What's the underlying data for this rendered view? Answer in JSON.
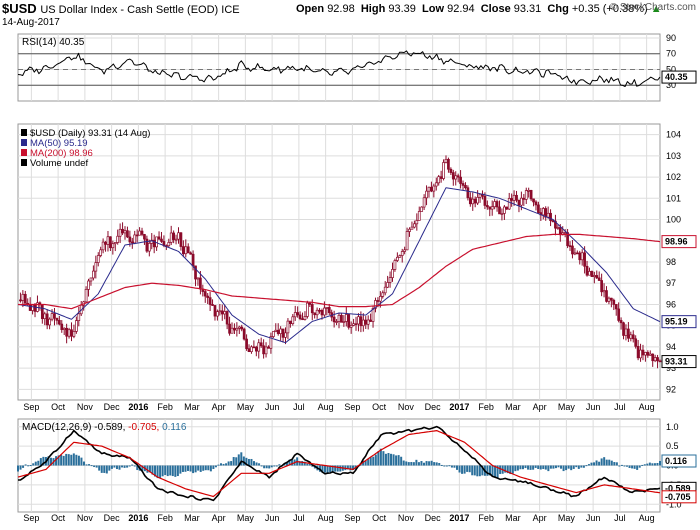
{
  "header": {
    "symbol": "$USD",
    "description": "US Dollar Index - Cash Settle (EOD) ICE",
    "open_label": "Open",
    "open": "92.98",
    "high_label": "High",
    "high": "93.39",
    "low_label": "Low",
    "low": "92.94",
    "close_label": "Close",
    "close": "93.31",
    "chg_label": "Chg",
    "chg": "+0.35 (+0.38%)",
    "chg_arrow": "▲",
    "date": "14-Aug-2017",
    "credit": "© StockCharts.com"
  },
  "colors": {
    "price": "#8b0a2a",
    "ma50": "#2a2a8c",
    "ma200": "#c8102e",
    "rsi": "#000000",
    "macd_line": "#000000",
    "macd_signal": "#d40000",
    "histogram": "#2a6f9b",
    "grid": "#dddddd",
    "axis_label_box": "#ffffff"
  },
  "months": [
    "Sep",
    "Oct",
    "Nov",
    "Dec",
    "2016",
    "Feb",
    "Mar",
    "Apr",
    "May",
    "Jun",
    "Jul",
    "Aug",
    "Sep",
    "Oct",
    "Nov",
    "Dec",
    "2017",
    "Feb",
    "Mar",
    "Apr",
    "May",
    "Jun",
    "Jul",
    "Aug"
  ],
  "chart_data": [
    {
      "type": "line",
      "panel": "RSI",
      "legend": "RSI(14) 40.35",
      "ylim": [
        10,
        95
      ],
      "yticks": [
        90,
        70,
        50,
        30
      ],
      "reference_lines": [
        70,
        30
      ],
      "last_value_label": "40.35",
      "x": [
        "2015-09",
        "2015-10",
        "2015-11",
        "2015-12",
        "2016-01",
        "2016-02",
        "2016-03",
        "2016-04",
        "2016-05",
        "2016-06",
        "2016-07",
        "2016-08",
        "2016-09",
        "2016-10",
        "2016-11",
        "2016-12",
        "2017-01",
        "2017-02",
        "2017-03",
        "2017-04",
        "2017-05",
        "2017-06",
        "2017-07",
        "2017-08"
      ],
      "values": [
        45,
        52,
        68,
        48,
        62,
        45,
        40,
        38,
        55,
        50,
        52,
        45,
        48,
        62,
        72,
        65,
        55,
        52,
        48,
        45,
        35,
        38,
        32,
        40.35
      ]
    },
    {
      "type": "line",
      "panel": "Price",
      "series_legend": [
        "$USD (Daily) 93.31 (14 Aug)",
        "MA(50) 95.19",
        "MA(200) 98.96",
        "Volume undef"
      ],
      "ylim": [
        91.5,
        104.5
      ],
      "yticks": [
        104,
        103,
        102,
        101,
        100,
        99,
        98,
        97,
        96,
        95,
        94,
        93,
        92
      ],
      "right_labels": [
        {
          "value": 98.96,
          "text": "98.96"
        },
        {
          "value": 95.19,
          "text": "95.19"
        },
        {
          "value": 93.31,
          "text": "93.31"
        }
      ],
      "x": [
        "2015-08",
        "2015-09",
        "2015-10",
        "2015-11",
        "2015-12",
        "2016-01",
        "2016-02",
        "2016-03",
        "2016-04",
        "2016-05",
        "2016-06",
        "2016-07",
        "2016-08",
        "2016-09",
        "2016-10",
        "2016-11",
        "2016-12",
        "2017-01",
        "2017-02",
        "2017-03",
        "2017-04",
        "2017-05",
        "2017-06",
        "2017-07",
        "2017-08"
      ],
      "series": [
        {
          "name": "$USD (Daily) 93.31 (14 Aug)",
          "values": [
            96.3,
            95.5,
            94.5,
            98.5,
            99.5,
            98.8,
            99.2,
            96.5,
            94.8,
            93.8,
            95.0,
            95.8,
            95.3,
            95.0,
            97.5,
            100.5,
            102.5,
            101.0,
            100.5,
            101.2,
            99.8,
            98.2,
            96.5,
            94.0,
            93.31
          ]
        },
        {
          "name": "MA(50) 95.19",
          "values": [
            96.0,
            95.8,
            95.3,
            96.5,
            98.8,
            99.0,
            98.5,
            97.2,
            95.5,
            94.6,
            94.2,
            95.2,
            95.6,
            95.5,
            96.5,
            99.0,
            101.5,
            101.3,
            101.0,
            100.5,
            100.0,
            98.8,
            97.5,
            95.8,
            95.19
          ]
        },
        {
          "name": "MA(200) 98.96",
          "values": [
            96.0,
            96.0,
            95.8,
            96.3,
            96.8,
            97.0,
            96.9,
            96.7,
            96.4,
            96.3,
            96.2,
            96.1,
            95.9,
            95.9,
            96.0,
            96.8,
            97.8,
            98.6,
            98.9,
            99.2,
            99.3,
            99.3,
            99.2,
            99.1,
            98.96
          ]
        }
      ]
    },
    {
      "type": "line",
      "panel": "MACD",
      "legend_prefix": "MACD(12,26,9)",
      "legend_values": [
        "-0.589,",
        "-0.705,",
        "0.116"
      ],
      "ylim": [
        -1.2,
        1.2
      ],
      "yticks": [
        1.0,
        0.5,
        0.0,
        -0.5,
        -1.0
      ],
      "right_labels": [
        {
          "value": 0.116,
          "text": "0.116"
        },
        {
          "value": -0.589,
          "text": "-0.589"
        },
        {
          "value": -0.705,
          "text": "-0.705"
        }
      ],
      "x": [
        "2015-09",
        "2015-10",
        "2015-11",
        "2015-12",
        "2016-01",
        "2016-02",
        "2016-03",
        "2016-04",
        "2016-05",
        "2016-06",
        "2016-07",
        "2016-08",
        "2016-09",
        "2016-10",
        "2016-11",
        "2016-12",
        "2017-01",
        "2017-02",
        "2017-03",
        "2017-04",
        "2017-05",
        "2017-06",
        "2017-07",
        "2017-08"
      ],
      "series": [
        {
          "name": "MACD(12,26,9)",
          "values": [
            -0.4,
            0.1,
            0.9,
            0.3,
            0.2,
            -0.6,
            -0.8,
            -0.9,
            0.1,
            -0.3,
            0.3,
            -0.2,
            -0.2,
            0.8,
            0.9,
            1.0,
            0.4,
            -0.3,
            -0.4,
            -0.6,
            -0.8,
            -0.3,
            -0.7,
            -0.589
          ]
        },
        {
          "name": "signal",
          "values": [
            -0.3,
            -0.1,
            0.6,
            0.5,
            0.2,
            -0.3,
            -0.6,
            -0.8,
            -0.2,
            -0.2,
            0.1,
            0.0,
            -0.1,
            0.4,
            0.8,
            0.9,
            0.6,
            0.0,
            -0.3,
            -0.5,
            -0.7,
            -0.5,
            -0.6,
            -0.705
          ]
        },
        {
          "name": "histogram",
          "values": [
            -0.1,
            0.2,
            0.3,
            -0.2,
            0.0,
            -0.3,
            -0.2,
            -0.1,
            0.3,
            -0.1,
            0.2,
            -0.2,
            -0.1,
            0.4,
            0.1,
            0.1,
            -0.2,
            -0.3,
            -0.1,
            -0.1,
            -0.1,
            0.2,
            -0.1,
            0.116
          ]
        }
      ]
    }
  ]
}
